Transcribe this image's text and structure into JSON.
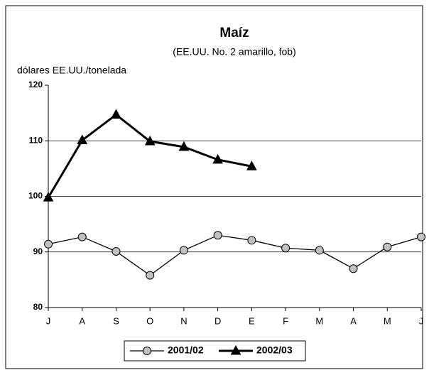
{
  "chart_data": {
    "type": "line",
    "title": "Maíz",
    "subtitle": "(EE.UU. No. 2 amarillo, fob)",
    "y_label": "dólares EE.UU./tonelada",
    "categories": [
      "J",
      "A",
      "S",
      "O",
      "N",
      "D",
      "E",
      "F",
      "M",
      "A",
      "M",
      "J"
    ],
    "series": [
      {
        "name": "2001/02",
        "color": "#c0c0c0",
        "marker": "circle",
        "values": [
          91.4,
          92.7,
          90.1,
          85.8,
          90.3,
          93.0,
          92.1,
          90.7,
          90.3,
          87.0,
          90.9,
          92.7
        ]
      },
      {
        "name": "2002/03",
        "color": "#000000",
        "marker": "triangle",
        "values": [
          99.8,
          110.1,
          114.7,
          109.9,
          108.9,
          106.6,
          105.4,
          null,
          null,
          null,
          null,
          null
        ]
      }
    ],
    "ylim": [
      80,
      120
    ],
    "yticks": [
      80,
      90,
      100,
      110,
      120
    ],
    "grid": true,
    "legend": "bottom"
  }
}
